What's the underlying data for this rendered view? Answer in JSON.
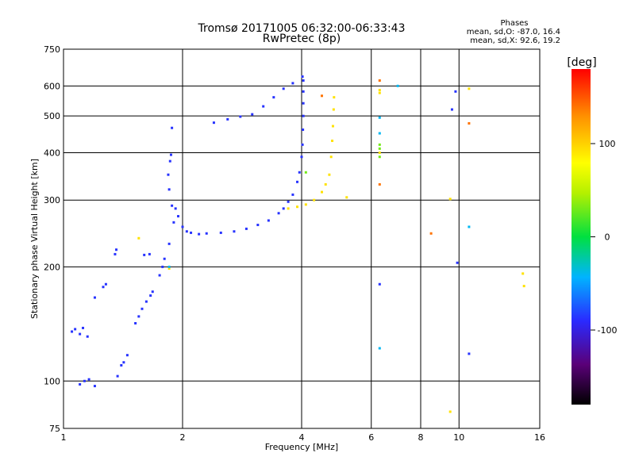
{
  "chart_data": {
    "type": "scatter",
    "title": "Tromsø 20171005 06:32:00-06:33:43",
    "subtitle": "RwPretec (8p)",
    "xlabel": "Frequency [MHz]",
    "ylabel": "Stationary phase Virtual Height [km]",
    "x_scale": "log",
    "y_scale": "log",
    "xlim": [
      1,
      16
    ],
    "ylim": [
      75,
      750
    ],
    "x_ticks": [
      1,
      2,
      4,
      6,
      8,
      10,
      16
    ],
    "x_tick_labels": [
      "1",
      "2",
      "4",
      "6",
      "8",
      "10",
      "16"
    ],
    "y_ticks": [
      75,
      100,
      200,
      300,
      400,
      500,
      600,
      750
    ],
    "y_tick_labels": [
      "75",
      "100",
      "200",
      "300",
      "400",
      "500",
      "600",
      "750"
    ],
    "grid": true,
    "stats": {
      "heading": "Phases",
      "line_o": "mean, sd,O: -87.0, 16.4",
      "line_x": "mean, sd,X:  92.6, 19.2"
    },
    "colorbar": {
      "label": "[deg]",
      "range": [
        -180,
        180
      ],
      "ticks": [
        100,
        0,
        -100
      ],
      "tick_labels": [
        "100",
        "0",
        "-100"
      ]
    },
    "series": [
      {
        "mode": "O",
        "phase_deg": -87,
        "points": [
          [
            1.05,
            135
          ],
          [
            1.07,
            137
          ],
          [
            1.1,
            133
          ],
          [
            1.12,
            138
          ],
          [
            1.15,
            131
          ],
          [
            1.1,
            98
          ],
          [
            1.13,
            100
          ],
          [
            1.16,
            101
          ],
          [
            1.2,
            97
          ],
          [
            1.2,
            166
          ],
          [
            1.26,
            177
          ],
          [
            1.28,
            180
          ],
          [
            1.35,
            216
          ],
          [
            1.36,
            222
          ],
          [
            1.37,
            103
          ],
          [
            1.4,
            110
          ],
          [
            1.42,
            112
          ],
          [
            1.45,
            117
          ],
          [
            1.52,
            142
          ],
          [
            1.55,
            148
          ],
          [
            1.58,
            155
          ],
          [
            1.62,
            162
          ],
          [
            1.66,
            168
          ],
          [
            1.68,
            172
          ],
          [
            1.6,
            215
          ],
          [
            1.65,
            216
          ],
          [
            1.75,
            190
          ],
          [
            1.78,
            200
          ],
          [
            1.8,
            210
          ],
          [
            1.85,
            230
          ],
          [
            1.9,
            262
          ],
          [
            1.88,
            290
          ],
          [
            1.85,
            320
          ],
          [
            1.84,
            350
          ],
          [
            1.86,
            380
          ],
          [
            1.87,
            395
          ],
          [
            1.88,
            465
          ],
          [
            1.92,
            285
          ],
          [
            1.95,
            272
          ],
          [
            2.0,
            255
          ],
          [
            2.05,
            248
          ],
          [
            2.1,
            246
          ],
          [
            2.2,
            244
          ],
          [
            2.3,
            245
          ],
          [
            2.5,
            246
          ],
          [
            2.7,
            248
          ],
          [
            2.9,
            252
          ],
          [
            3.1,
            258
          ],
          [
            3.3,
            265
          ],
          [
            3.5,
            277
          ],
          [
            3.6,
            285
          ],
          [
            3.7,
            297
          ],
          [
            3.8,
            310
          ],
          [
            3.9,
            335
          ],
          [
            3.95,
            355
          ],
          [
            4.0,
            390
          ],
          [
            4.02,
            420
          ],
          [
            4.03,
            460
          ],
          [
            4.04,
            500
          ],
          [
            4.04,
            540
          ],
          [
            4.04,
            580
          ],
          [
            4.04,
            620
          ],
          [
            4.02,
            635
          ],
          [
            2.4,
            480
          ],
          [
            2.6,
            490
          ],
          [
            2.8,
            498
          ],
          [
            3.0,
            505
          ],
          [
            3.2,
            530
          ],
          [
            3.4,
            560
          ],
          [
            3.6,
            590
          ],
          [
            3.8,
            610
          ],
          [
            6.3,
            180
          ],
          [
            9.6,
            520
          ],
          [
            9.8,
            580
          ],
          [
            9.9,
            205
          ],
          [
            10.6,
            118
          ]
        ]
      },
      {
        "mode": "X",
        "phase_deg": 93,
        "points": [
          [
            3.7,
            285
          ],
          [
            3.9,
            288
          ],
          [
            4.1,
            292
          ],
          [
            4.3,
            300
          ],
          [
            4.5,
            315
          ],
          [
            4.6,
            330
          ],
          [
            4.7,
            350
          ],
          [
            4.75,
            390
          ],
          [
            4.78,
            430
          ],
          [
            4.8,
            470
          ],
          [
            4.82,
            520
          ],
          [
            4.83,
            560
          ],
          [
            1.55,
            238
          ],
          [
            1.85,
            198
          ],
          [
            5.2,
            305
          ],
          [
            6.3,
            585
          ],
          [
            6.3,
            575
          ],
          [
            6.3,
            400
          ],
          [
            10.6,
            590
          ],
          [
            14.5,
            192
          ],
          [
            14.6,
            178
          ],
          [
            9.5,
            302
          ],
          [
            9.5,
            83
          ]
        ]
      },
      {
        "mode": "other",
        "phase_deg": 140,
        "points": [
          [
            6.3,
            620
          ],
          [
            6.3,
            330
          ],
          [
            8.5,
            245
          ],
          [
            4.5,
            565
          ],
          [
            10.6,
            478
          ]
        ]
      },
      {
        "mode": "other",
        "phase_deg": -40,
        "points": [
          [
            6.3,
            122
          ],
          [
            6.3,
            495
          ],
          [
            6.3,
            450
          ],
          [
            1.85,
            200
          ],
          [
            10.6,
            255
          ],
          [
            7.0,
            600
          ]
        ]
      },
      {
        "mode": "other",
        "phase_deg": 30,
        "points": [
          [
            6.3,
            420
          ],
          [
            6.3,
            410
          ],
          [
            6.3,
            390
          ],
          [
            4.1,
            355
          ]
        ]
      }
    ]
  }
}
